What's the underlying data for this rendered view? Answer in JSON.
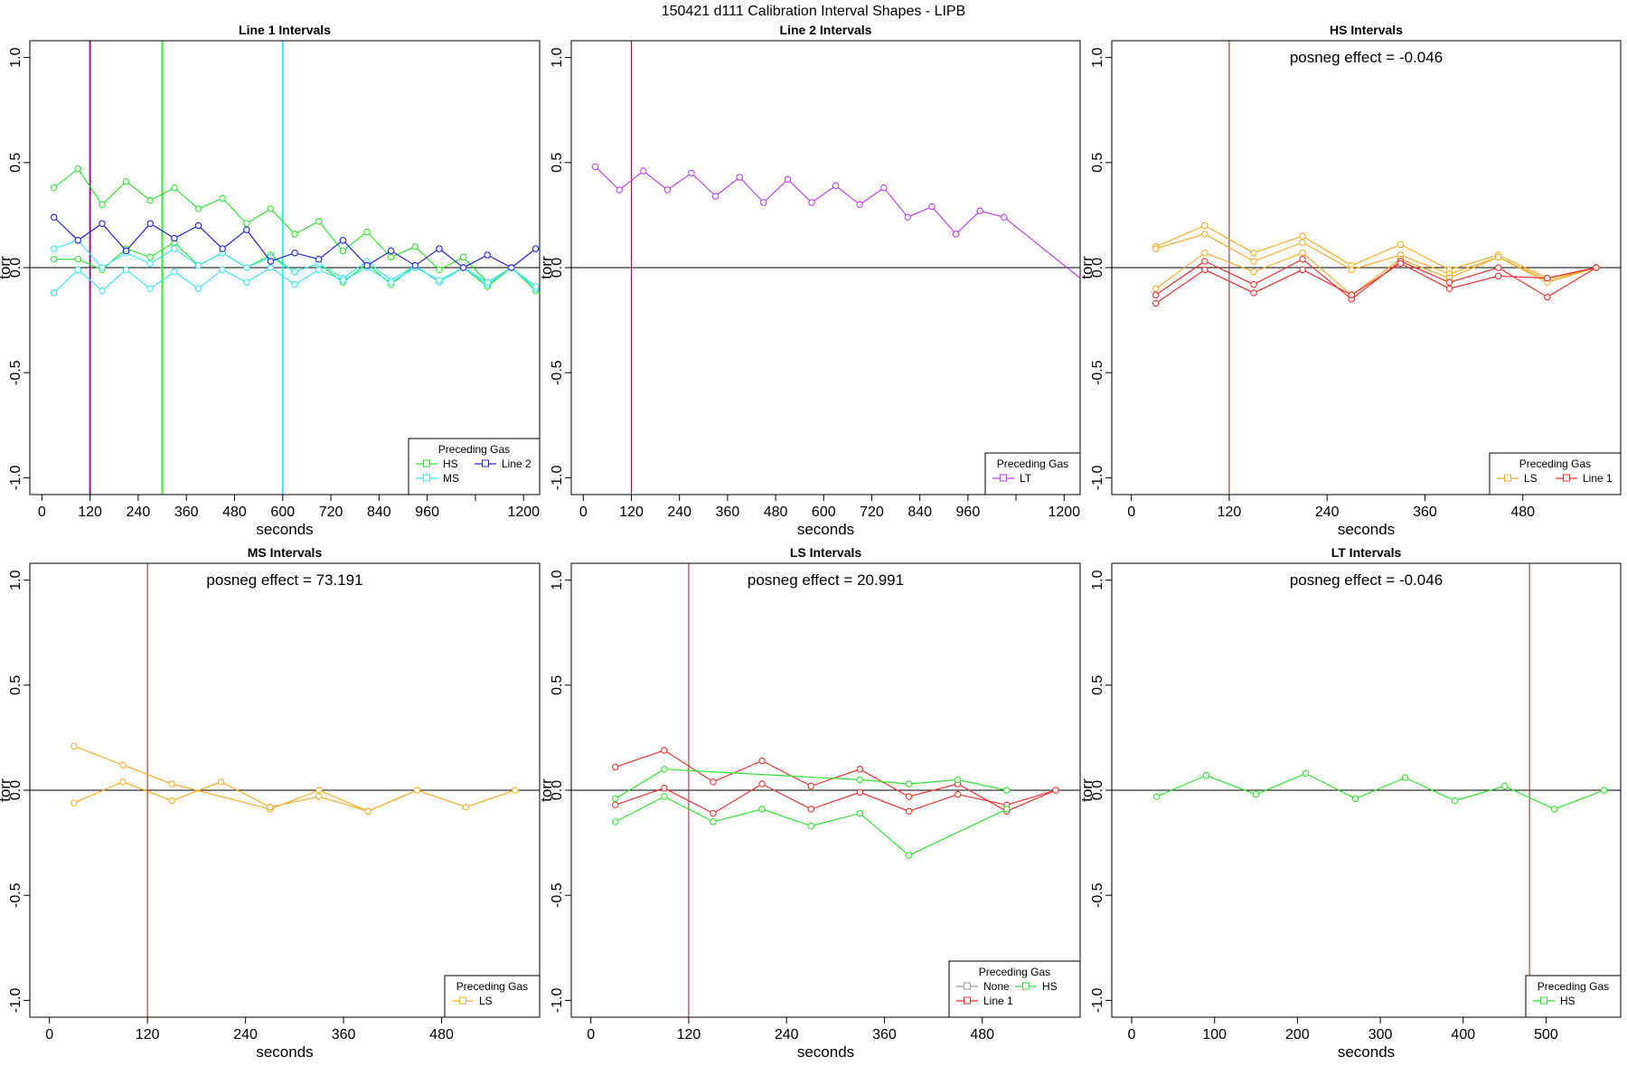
{
  "figure_title": "150421   d111   Calibration Interval Shapes - LIPB",
  "colors": {
    "HS": "#2ee62e",
    "MS": "#3ee6ee",
    "Line 2": "#2424d8",
    "LT": "#c040f0",
    "LS": "#f5ad29",
    "Line 1": "#ee3030",
    "None": "#999999",
    "ref_line": "#a31c1c",
    "purple_line": "#8b1a8b",
    "axis": "#000000"
  },
  "chart_data": [
    {
      "type": "line",
      "title": "Line 1 Intervals",
      "xlabel": "seconds",
      "ylabel": "torr",
      "xlim": [
        -30,
        1240
      ],
      "ylim": [
        -1.08,
        1.08
      ],
      "xticks": [
        0,
        120,
        240,
        360,
        480,
        600,
        720,
        840,
        960,
        1080,
        1200
      ],
      "xtick_labels": [
        "0",
        "120",
        "240",
        "360",
        "480",
        "600",
        "720",
        "840",
        "960",
        "",
        "1200"
      ],
      "yticks": [
        -1.0,
        -0.5,
        0.0,
        0.5,
        1.0
      ],
      "ytick_labels": [
        "-1.0",
        "-0.5",
        "0.0",
        "0.5",
        "1.0"
      ],
      "hline": 0,
      "vlines": [
        {
          "x": 120,
          "color_key": "purple_line",
          "width": 2
        },
        {
          "x": 300,
          "color_key": "HS",
          "width": 2
        },
        {
          "x": 600,
          "color_key": "MS",
          "width": 2
        }
      ],
      "annotation": "",
      "legend": {
        "title": "Preceding Gas",
        "position": "bottom-right",
        "columns": 2,
        "entries": [
          "HS",
          "MS",
          "Line 2"
        ]
      },
      "series": [
        {
          "name": "HS",
          "color_key": "HS",
          "x": [
            30,
            90,
            150,
            210,
            270,
            330,
            390,
            450,
            510,
            570,
            630,
            690,
            750,
            810,
            870,
            930,
            990,
            1050,
            1110,
            1170,
            1230
          ],
          "y": [
            0.38,
            0.47,
            0.3,
            0.41,
            0.32,
            0.38,
            0.28,
            0.33,
            0.21,
            0.28,
            0.16,
            0.22,
            0.08,
            0.17,
            0.05,
            0.1,
            -0.01,
            0.05,
            -0.07,
            0.0,
            -0.11
          ]
        },
        {
          "name": "HS",
          "color_key": "HS",
          "x": [
            30,
            90,
            150,
            210,
            270,
            330,
            390,
            450,
            510,
            570,
            630,
            690,
            750,
            810,
            870,
            930,
            990,
            1050,
            1110,
            1170,
            1230
          ],
          "y": [
            0.04,
            0.04,
            -0.01,
            0.09,
            0.05,
            0.12,
            0.01,
            0.07,
            0.0,
            0.06,
            -0.02,
            0.02,
            -0.07,
            0.02,
            -0.08,
            0.01,
            -0.07,
            0.0,
            -0.09,
            0.0,
            -0.1
          ]
        },
        {
          "name": "MS",
          "color_key": "MS",
          "x": [
            30,
            90,
            150,
            210,
            270,
            330,
            390,
            450,
            510,
            570,
            630,
            690,
            750,
            810,
            870,
            930,
            990,
            1050,
            1110,
            1170,
            1230
          ],
          "y": [
            0.09,
            0.13,
            0.0,
            0.07,
            0.02,
            0.09,
            0.01,
            0.07,
            0.0,
            0.05,
            -0.02,
            0.02,
            -0.05,
            0.03,
            -0.06,
            0.01,
            -0.07,
            0.0,
            -0.08,
            0.0,
            -0.1
          ]
        },
        {
          "name": "MS",
          "color_key": "MS",
          "x": [
            30,
            90,
            150,
            210,
            270,
            330,
            390,
            450,
            510,
            570,
            630,
            690,
            750,
            810,
            870,
            930,
            990,
            1050,
            1110,
            1170,
            1230
          ],
          "y": [
            -0.12,
            -0.01,
            -0.11,
            -0.01,
            -0.1,
            -0.02,
            -0.1,
            -0.01,
            -0.07,
            0.0,
            -0.08,
            -0.01,
            -0.06,
            0.0,
            -0.07,
            0.0,
            -0.06,
            0.0,
            -0.07,
            0.0,
            -0.09
          ]
        },
        {
          "name": "Line 2",
          "color_key": "Line 2",
          "x": [
            30,
            90,
            150,
            210,
            270,
            330,
            390,
            450,
            510,
            570,
            630,
            690,
            750,
            810,
            870,
            930,
            990,
            1050,
            1110,
            1170,
            1230
          ],
          "y": [
            0.24,
            0.13,
            0.21,
            0.08,
            0.21,
            0.14,
            0.2,
            0.09,
            0.18,
            0.03,
            0.07,
            0.04,
            0.13,
            0.01,
            0.08,
            0.01,
            0.09,
            0.0,
            0.06,
            0.0,
            0.09
          ]
        }
      ]
    },
    {
      "type": "line",
      "title": "Line 2 Intervals",
      "xlabel": "seconds",
      "ylabel": "torr",
      "xlim": [
        -30,
        1240
      ],
      "ylim": [
        -1.08,
        1.08
      ],
      "xticks": [
        0,
        120,
        240,
        360,
        480,
        600,
        720,
        840,
        960,
        1080,
        1200
      ],
      "xtick_labels": [
        "0",
        "120",
        "240",
        "360",
        "480",
        "600",
        "720",
        "840",
        "960",
        "",
        "1200"
      ],
      "yticks": [
        -1.0,
        -0.5,
        0.0,
        0.5,
        1.0
      ],
      "ytick_labels": [
        "-1.0",
        "-0.5",
        "0.0",
        "0.5",
        "1.0"
      ],
      "hline": 0,
      "vlines": [
        {
          "x": 120,
          "color_key": "ref_line",
          "width": 1
        }
      ],
      "annotation": "",
      "legend": {
        "title": "Preceding Gas",
        "position": "bottom-right",
        "columns": 1,
        "entries": [
          "LT"
        ]
      },
      "series": [
        {
          "name": "LT",
          "color_key": "LT",
          "x": [
            30,
            90,
            150,
            210,
            270,
            330,
            390,
            450,
            510,
            570,
            630,
            690,
            750,
            810,
            870,
            930,
            990,
            1050
          ],
          "y": [
            0.48,
            0.37,
            0.46,
            0.37,
            0.45,
            0.34,
            0.43,
            0.31,
            0.42,
            0.31,
            0.39,
            0.3,
            0.38,
            0.24,
            0.29,
            0.16,
            0.27,
            0.24
          ],
          "end_line": {
            "x": 1240,
            "y": -0.05
          }
        }
      ]
    },
    {
      "type": "line",
      "title": "HS Intervals",
      "xlabel": "seconds",
      "ylabel": "torr",
      "xlim": [
        -24,
        600
      ],
      "ylim": [
        -1.08,
        1.08
      ],
      "xticks": [
        0,
        120,
        240,
        360,
        480
      ],
      "xtick_labels": [
        "0",
        "120",
        "240",
        "360",
        "480"
      ],
      "yticks": [
        -1.0,
        -0.5,
        0.0,
        0.5,
        1.0
      ],
      "ytick_labels": [
        "-1.0",
        "-0.5",
        "0.0",
        "0.5",
        "1.0"
      ],
      "hline": 0,
      "vlines": [
        {
          "x": 120,
          "color_key": "ref_line",
          "width": 1
        }
      ],
      "annotation": "posneg effect = -0.046",
      "legend": {
        "title": "Preceding Gas",
        "position": "bottom-right",
        "columns": 2,
        "entries": [
          "LS",
          "Line 1"
        ]
      },
      "series": [
        {
          "name": "LS",
          "color_key": "LS",
          "x": [
            30,
            90,
            150,
            210,
            270,
            330,
            390,
            450,
            510,
            570
          ],
          "y": [
            0.1,
            0.2,
            0.07,
            0.15,
            0.01,
            0.11,
            -0.01,
            0.06,
            -0.05,
            0.0
          ]
        },
        {
          "name": "LS",
          "color_key": "LS",
          "x": [
            30,
            90,
            150,
            210,
            270,
            330,
            390,
            450,
            510,
            570
          ],
          "y": [
            0.09,
            0.16,
            0.03,
            0.12,
            -0.01,
            0.06,
            -0.03,
            0.05,
            -0.06,
            0.0
          ]
        },
        {
          "name": "LS",
          "color_key": "LS",
          "x": [
            30,
            90,
            150,
            210,
            270,
            330,
            390,
            450,
            510,
            570
          ],
          "y": [
            -0.1,
            0.07,
            -0.02,
            0.07,
            -0.13,
            0.04,
            -0.05,
            0.05,
            -0.07,
            0.0
          ]
        },
        {
          "name": "Line 1",
          "color_key": "Line 1",
          "x": [
            30,
            90,
            150,
            210,
            270,
            330,
            390,
            450,
            510,
            570
          ],
          "y": [
            -0.13,
            0.03,
            -0.08,
            0.04,
            -0.15,
            0.03,
            -0.07,
            0.0,
            -0.14,
            0.0
          ]
        },
        {
          "name": "Line 1",
          "color_key": "Line 1",
          "x": [
            30,
            90,
            150,
            210,
            270,
            330,
            390,
            450,
            510,
            570
          ],
          "y": [
            -0.17,
            -0.01,
            -0.12,
            -0.01,
            -0.13,
            0.02,
            -0.1,
            -0.04,
            -0.05,
            0.0
          ]
        }
      ]
    },
    {
      "type": "line",
      "title": "MS Intervals",
      "xlabel": "seconds",
      "ylabel": "torr",
      "xlim": [
        -24,
        600
      ],
      "ylim": [
        -1.08,
        1.08
      ],
      "xticks": [
        0,
        120,
        240,
        360,
        480
      ],
      "xtick_labels": [
        "0",
        "120",
        "240",
        "360",
        "480"
      ],
      "yticks": [
        -1.0,
        -0.5,
        0.0,
        0.5,
        1.0
      ],
      "ytick_labels": [
        "-1.0",
        "-0.5",
        "0.0",
        "0.5",
        "1.0"
      ],
      "hline": 0,
      "vlines": [
        {
          "x": 120,
          "color_key": "ref_line",
          "width": 1
        }
      ],
      "annotation": "posneg effect = 73.191",
      "legend": {
        "title": "Preceding Gas",
        "position": "bottom-right",
        "columns": 1,
        "entries": [
          "LS"
        ]
      },
      "series": [
        {
          "name": "LS",
          "color_key": "LS",
          "x": [
            30,
            90,
            150,
            270,
            330,
            390,
            450
          ],
          "y": [
            0.21,
            0.12,
            0.03,
            -0.09,
            0.0,
            -0.1,
            0.0
          ]
        },
        {
          "name": "LS",
          "color_key": "LS",
          "x": [
            30,
            90,
            150,
            210,
            270,
            330,
            390,
            450,
            510,
            570
          ],
          "y": [
            -0.06,
            0.04,
            -0.05,
            0.04,
            -0.08,
            -0.03,
            -0.1,
            0.0,
            -0.08,
            0.0
          ]
        }
      ]
    },
    {
      "type": "line",
      "title": "LS Intervals",
      "xlabel": "seconds",
      "ylabel": "torr",
      "xlim": [
        -24,
        600
      ],
      "ylim": [
        -1.08,
        1.08
      ],
      "xticks": [
        0,
        120,
        240,
        360,
        480
      ],
      "xtick_labels": [
        "0",
        "120",
        "240",
        "360",
        "480"
      ],
      "yticks": [
        -1.0,
        -0.5,
        0.0,
        0.5,
        1.0
      ],
      "ytick_labels": [
        "-1.0",
        "-0.5",
        "0.0",
        "0.5",
        "1.0"
      ],
      "hline": 0,
      "vlines": [
        {
          "x": 120,
          "color_key": "ref_line",
          "width": 1
        }
      ],
      "annotation": "posneg effect = 20.991",
      "legend": {
        "title": "Preceding Gas",
        "position": "bottom-right",
        "columns": 2,
        "entries": [
          "None",
          "Line 1",
          "HS"
        ]
      },
      "series": [
        {
          "name": "Line 1",
          "color_key": "Line 1",
          "x": [
            30,
            90,
            150,
            210,
            270,
            330,
            390,
            450,
            510,
            570
          ],
          "y": [
            0.11,
            0.19,
            0.04,
            0.14,
            0.02,
            0.1,
            -0.03,
            0.03,
            -0.1,
            0.0
          ]
        },
        {
          "name": "Line 1",
          "color_key": "Line 1",
          "x": [
            30,
            90,
            150,
            210,
            270,
            330,
            390,
            450,
            510,
            570
          ],
          "y": [
            -0.07,
            0.01,
            -0.11,
            0.03,
            -0.09,
            -0.01,
            -0.1,
            -0.02,
            -0.07,
            0.0
          ]
        },
        {
          "name": "HS",
          "color_key": "HS",
          "x": [
            30,
            90,
            330,
            390,
            450,
            510
          ],
          "y": [
            -0.04,
            0.1,
            0.05,
            0.03,
            0.05,
            0.0
          ]
        },
        {
          "name": "HS",
          "color_key": "HS",
          "x": [
            30,
            90,
            150,
            210,
            270,
            330,
            390,
            510
          ],
          "y": [
            -0.15,
            -0.03,
            -0.15,
            -0.09,
            -0.17,
            -0.11,
            -0.31,
            -0.09
          ]
        }
      ]
    },
    {
      "type": "line",
      "title": "LT Intervals",
      "xlabel": "seconds",
      "ylabel": "torr",
      "xlim": [
        -24,
        590
      ],
      "ylim": [
        -1.08,
        1.08
      ],
      "xticks": [
        0,
        100,
        200,
        300,
        400,
        500
      ],
      "xtick_labels": [
        "0",
        "100",
        "200",
        "300",
        "400",
        "500"
      ],
      "yticks": [
        -1.0,
        -0.5,
        0.0,
        0.5,
        1.0
      ],
      "ytick_labels": [
        "-1.0",
        "-0.5",
        "0.0",
        "0.5",
        "1.0"
      ],
      "hline": 0,
      "vlines": [
        {
          "x": 480,
          "color_key": "ref_line",
          "width": 1
        }
      ],
      "annotation": "posneg effect = -0.046",
      "legend": {
        "title": "Preceding Gas",
        "position": "bottom-right",
        "columns": 1,
        "entries": [
          "HS"
        ]
      },
      "series": [
        {
          "name": "HS",
          "color_key": "HS",
          "x": [
            30,
            90,
            150,
            210,
            270,
            330,
            390,
            450,
            510,
            570
          ],
          "y": [
            -0.03,
            0.07,
            -0.02,
            0.08,
            -0.04,
            0.06,
            -0.05,
            0.02,
            -0.09,
            0.0
          ]
        }
      ]
    }
  ]
}
